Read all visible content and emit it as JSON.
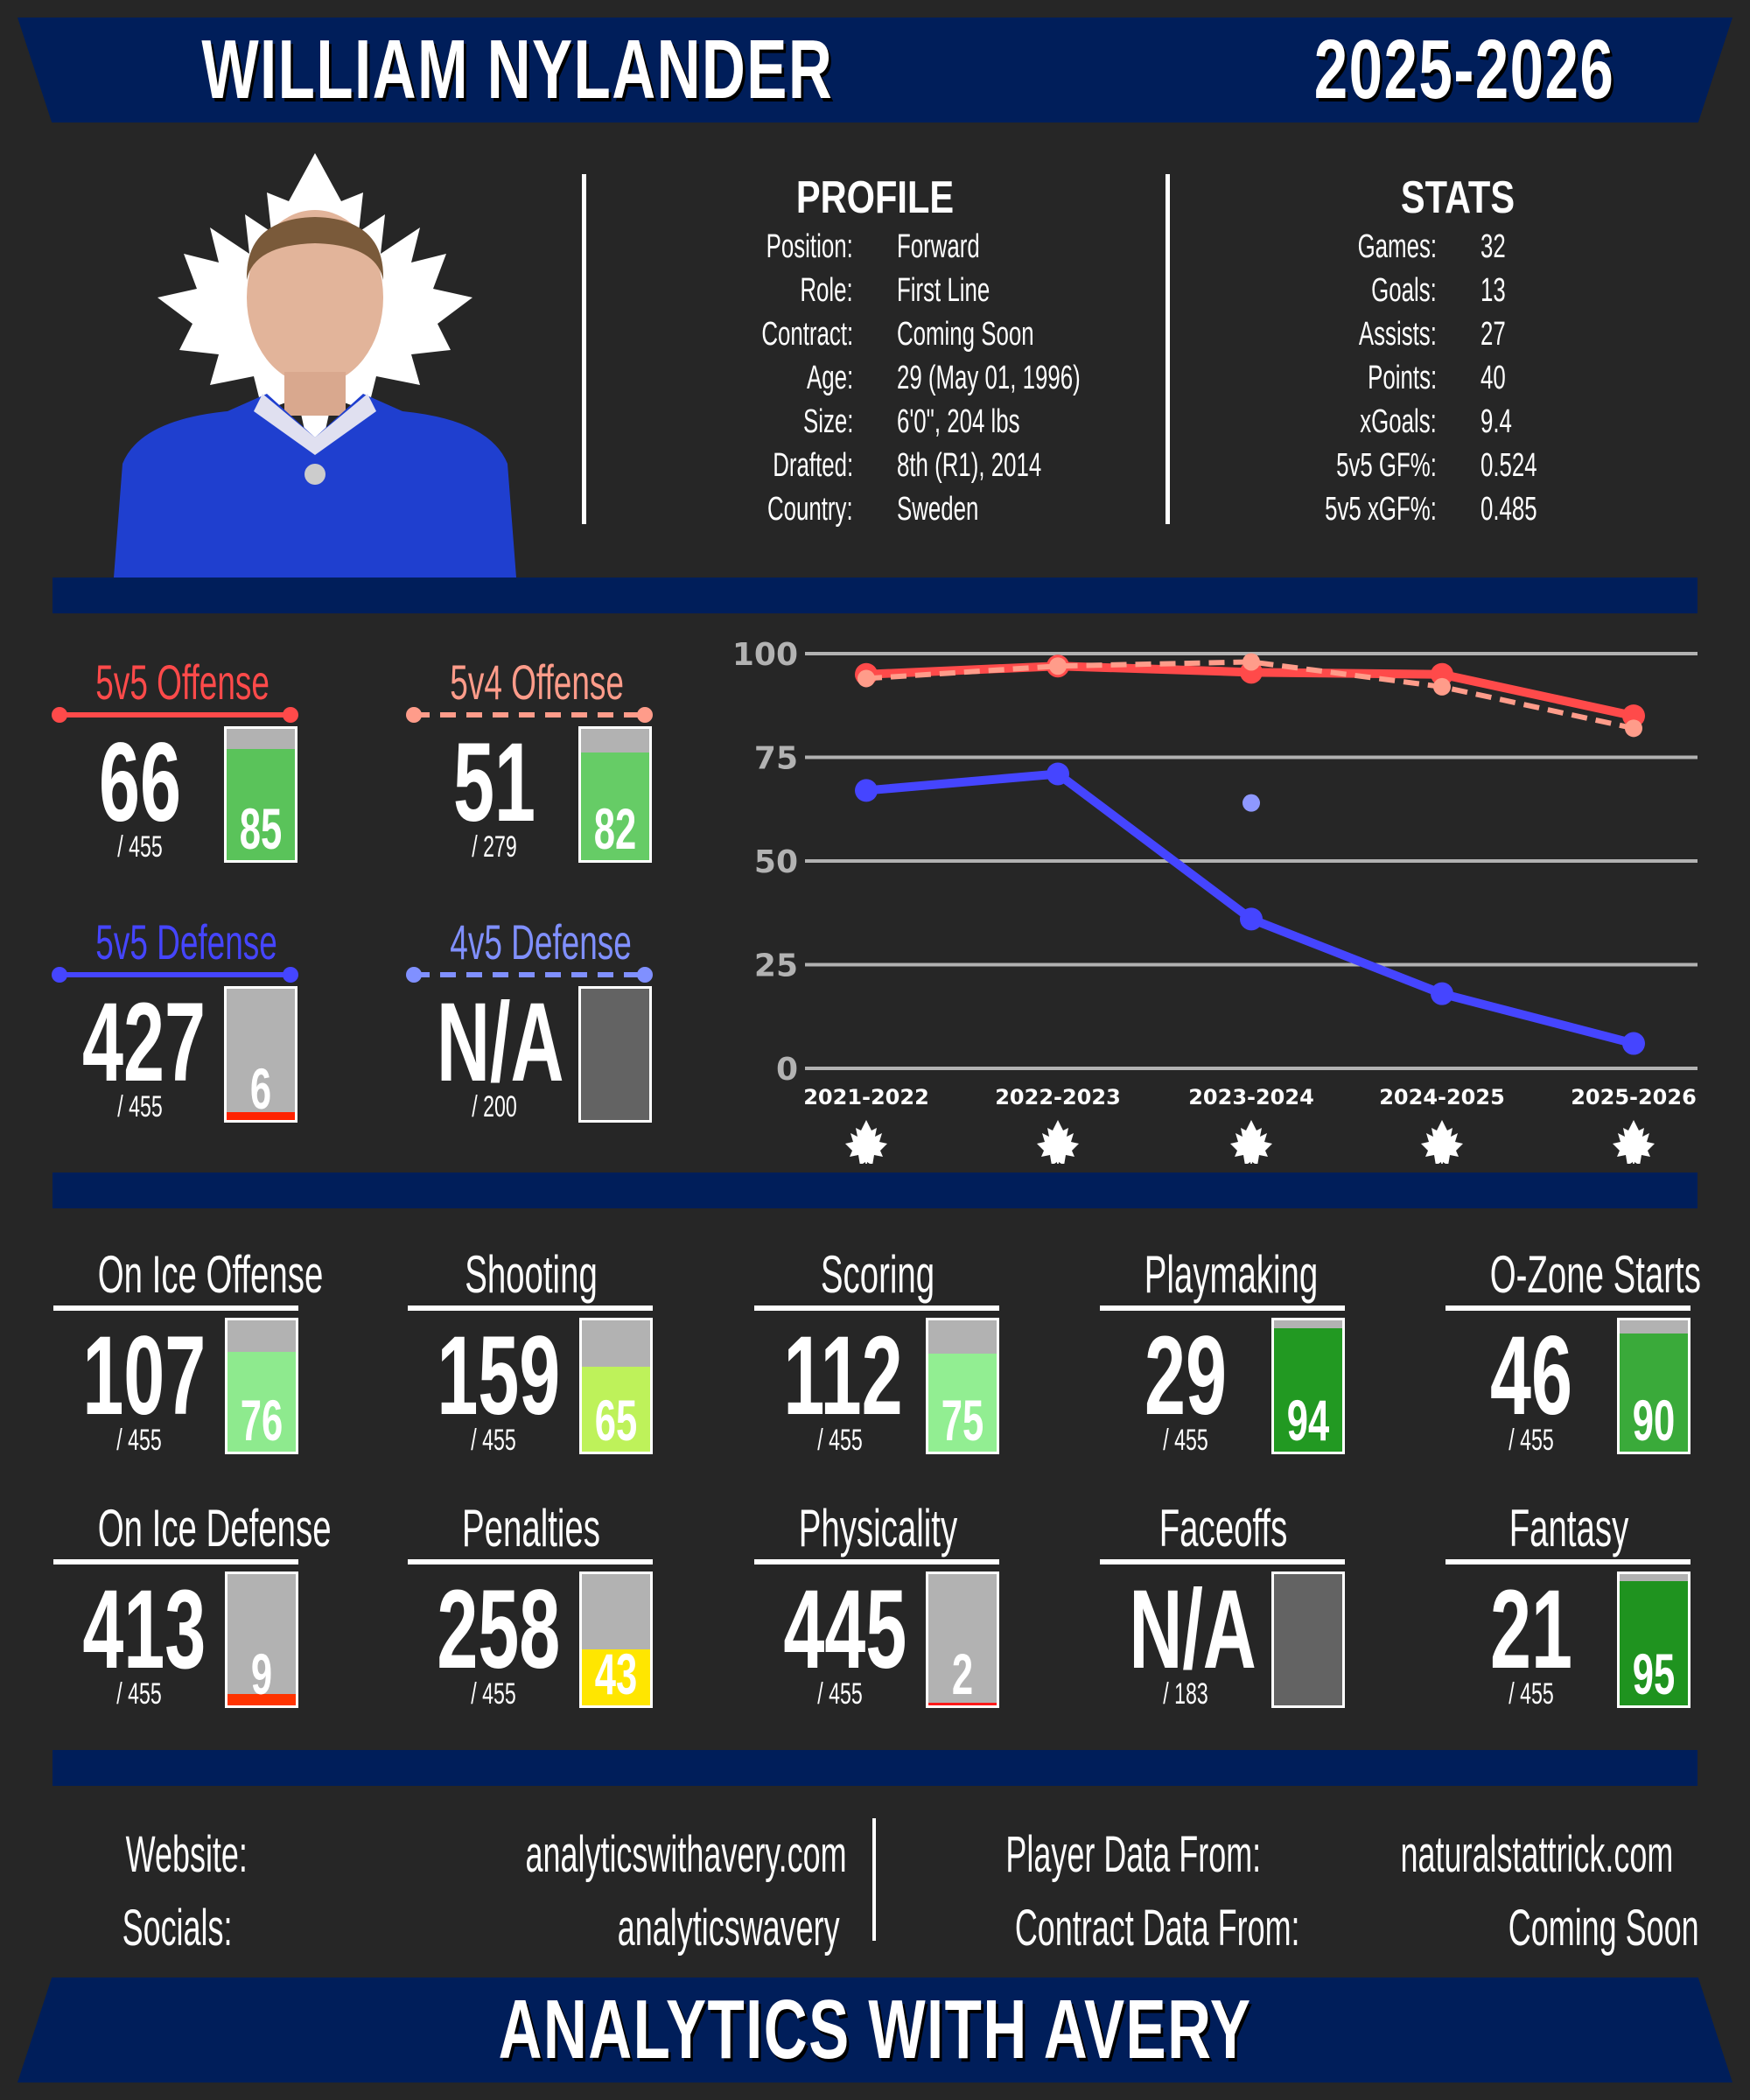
{
  "header": {
    "player_name": "WILLIAM NYLANDER",
    "season": "2025-2026"
  },
  "profile": {
    "title": "PROFILE",
    "rows": [
      {
        "label": "Position:",
        "value": "Forward"
      },
      {
        "label": "Role:",
        "value": "First Line"
      },
      {
        "label": "Contract:",
        "value": "Coming Soon"
      },
      {
        "label": "Age:",
        "value": "29 (May 01, 1996)"
      },
      {
        "label": "Size:",
        "value": "6'0\", 204 lbs"
      },
      {
        "label": "Drafted:",
        "value": "8th (R1), 2014"
      },
      {
        "label": "Country:",
        "value": "Sweden"
      }
    ]
  },
  "stats": {
    "title": "STATS",
    "rows": [
      {
        "label": "Games:",
        "value": "32"
      },
      {
        "label": "Goals:",
        "value": "13"
      },
      {
        "label": "Assists:",
        "value": "27"
      },
      {
        "label": "Points:",
        "value": "40"
      },
      {
        "label": "xGoals:",
        "value": "9.4"
      },
      {
        "label": "5v5 GF%:",
        "value": "0.524"
      },
      {
        "label": "5v5 xGF%:",
        "value": "0.485"
      }
    ]
  },
  "situational": [
    {
      "title": "5v5 Offense",
      "rank": "66",
      "of": "/ 455",
      "percentile": "85",
      "pct": 85,
      "color": "#ff4a4a",
      "fill": "#5ac35a",
      "dashed": false
    },
    {
      "title": "5v4 Offense",
      "rank": "51",
      "of": "/ 279",
      "percentile": "82",
      "pct": 82,
      "color": "#ff9c8a",
      "fill": "#66cc66",
      "dashed": true
    },
    {
      "title": "5v5 Defense",
      "rank": "427",
      "of": "/ 455",
      "percentile": "6",
      "pct": 6,
      "color": "#4545ff",
      "fill": "#ff2200",
      "dashed": false
    },
    {
      "title": "4v5 Defense",
      "rank": "N/A",
      "of": "/ 200",
      "percentile": "",
      "pct": null,
      "color": "#8090ff",
      "fill": "#636363",
      "dashed": true
    }
  ],
  "categories": [
    {
      "title": "On Ice Offense",
      "rank": "107",
      "of": "/ 455",
      "percentile": "76",
      "pct": 76,
      "fill": "#8eea8e"
    },
    {
      "title": "Shooting",
      "rank": "159",
      "of": "/ 455",
      "percentile": "65",
      "pct": 65,
      "fill": "#bef25a"
    },
    {
      "title": "Scoring",
      "rank": "112",
      "of": "/ 455",
      "percentile": "75",
      "pct": 75,
      "fill": "#92ee92"
    },
    {
      "title": "Playmaking",
      "rank": "29",
      "of": "/ 455",
      "percentile": "94",
      "pct": 94,
      "fill": "#229922"
    },
    {
      "title": "O-Zone Starts",
      "rank": "46",
      "of": "/ 455",
      "percentile": "90",
      "pct": 90,
      "fill": "#3aaa3a"
    },
    {
      "title": "On Ice Defense",
      "rank": "413",
      "of": "/ 455",
      "percentile": "9",
      "pct": 9,
      "fill": "#ff3300"
    },
    {
      "title": "Penalties",
      "rank": "258",
      "of": "/ 455",
      "percentile": "43",
      "pct": 43,
      "fill": "#ffe600"
    },
    {
      "title": "Physicality",
      "rank": "445",
      "of": "/ 455",
      "percentile": "2",
      "pct": 2,
      "fill": "#ff1a1a"
    },
    {
      "title": "Faceoffs",
      "rank": "N/A",
      "of": "/ 183",
      "percentile": "",
      "pct": null,
      "fill": "#636363"
    },
    {
      "title": "Fantasy",
      "rank": "21",
      "of": "/ 455",
      "percentile": "95",
      "pct": 95,
      "fill": "#1f931f"
    }
  ],
  "chart_data": {
    "type": "line",
    "title": "",
    "xlabel": "",
    "ylabel": "",
    "categories": [
      "2021-2022",
      "2022-2023",
      "2023-2024",
      "2024-2025",
      "2025-2026"
    ],
    "yticks": [
      0,
      25,
      50,
      75,
      100
    ],
    "ylim": [
      0,
      100
    ],
    "grid": true,
    "legend": "none",
    "series": [
      {
        "name": "5v5 Offense",
        "color": "#ff4a4a",
        "style": "solid",
        "values": [
          95,
          97,
          95.5,
          95,
          85
        ]
      },
      {
        "name": "5v4 Offense",
        "color": "#ff9c8a",
        "style": "dashed",
        "values": [
          94,
          97,
          98,
          92,
          82
        ]
      },
      {
        "name": "5v5 Defense",
        "color": "#4545ff",
        "style": "solid",
        "values": [
          67,
          71,
          36,
          18,
          6
        ]
      },
      {
        "name": "4v5 Defense",
        "color": "#8e98ff",
        "style": "dashed",
        "values": [
          null,
          null,
          64,
          null,
          null
        ]
      }
    ]
  },
  "footer": {
    "website_label": "Website:",
    "website_value": "analyticswithavery.com",
    "socials_label": "Socials:",
    "socials_value": "analyticswavery",
    "player_data_label": "Player Data From:",
    "player_data_value": "naturalstattrick.com",
    "contract_data_label": "Contract Data From:",
    "contract_data_value": "Coming Soon",
    "brand": "ANALYTICS WITH AVERY"
  },
  "colors": {
    "navy": "#001e5a",
    "background": "#262626"
  }
}
